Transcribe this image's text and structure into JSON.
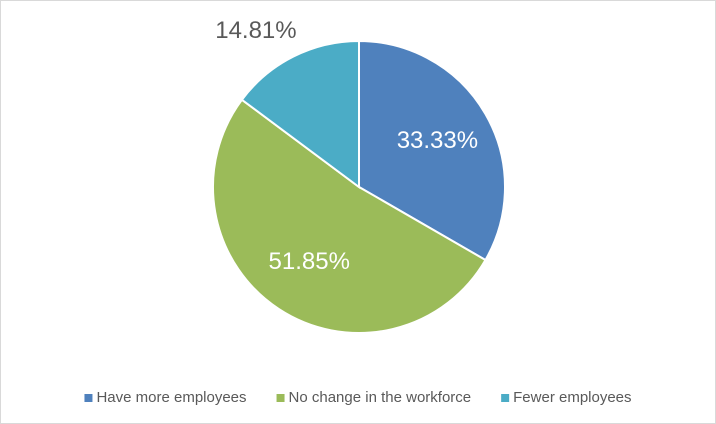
{
  "chart_data": {
    "type": "pie",
    "categories": [
      "Have more employees",
      "No change in the workforce",
      "Fewer employees"
    ],
    "values": [
      33.33,
      51.85,
      14.81
    ],
    "value_labels": [
      "33.33%",
      "51.85%",
      "14.81%"
    ],
    "colors": [
      "#4f81bd",
      "#9bbb59",
      "#4bacc6"
    ],
    "legend": "bottom"
  }
}
